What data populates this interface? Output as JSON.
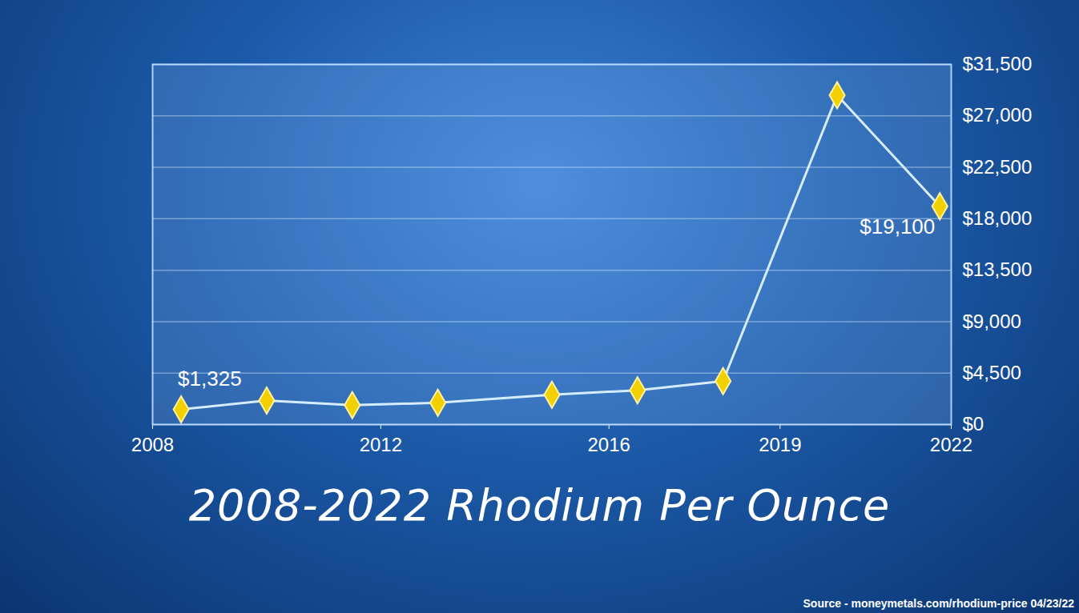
{
  "chart_data": {
    "type": "line",
    "title": "2008-2022 Rhodium Per Ounce",
    "source": "Source - moneymetals.com/rhodium-price 04/23/22",
    "x": [
      2008.5,
      2010,
      2011.5,
      2013,
      2015,
      2016.5,
      2018,
      2020,
      2021.8
    ],
    "values": [
      1325,
      2100,
      1700,
      1900,
      2600,
      3000,
      3800,
      28800,
      19100
    ],
    "value_labels": [
      "$1,325",
      null,
      null,
      null,
      null,
      null,
      null,
      null,
      "$19,100"
    ],
    "data_labels": true,
    "xlim": [
      2008,
      2022
    ],
    "xticks": [
      2008,
      2012,
      2016,
      2019,
      2022
    ],
    "ylim": [
      0,
      31500
    ],
    "yticks": [
      {
        "value": 0,
        "label": "$0"
      },
      {
        "value": 4500,
        "label": "$4,500"
      },
      {
        "value": 9000,
        "label": "$9,000"
      },
      {
        "value": 13500,
        "label": "$13,500"
      },
      {
        "value": 18000,
        "label": "$18,000"
      },
      {
        "value": 22500,
        "label": "$22,500"
      },
      {
        "value": 27000,
        "label": "$27,000"
      },
      {
        "value": 31500,
        "label": "$31,500"
      }
    ],
    "grid": true,
    "color": "#d6ecff",
    "marker": "diamond"
  }
}
